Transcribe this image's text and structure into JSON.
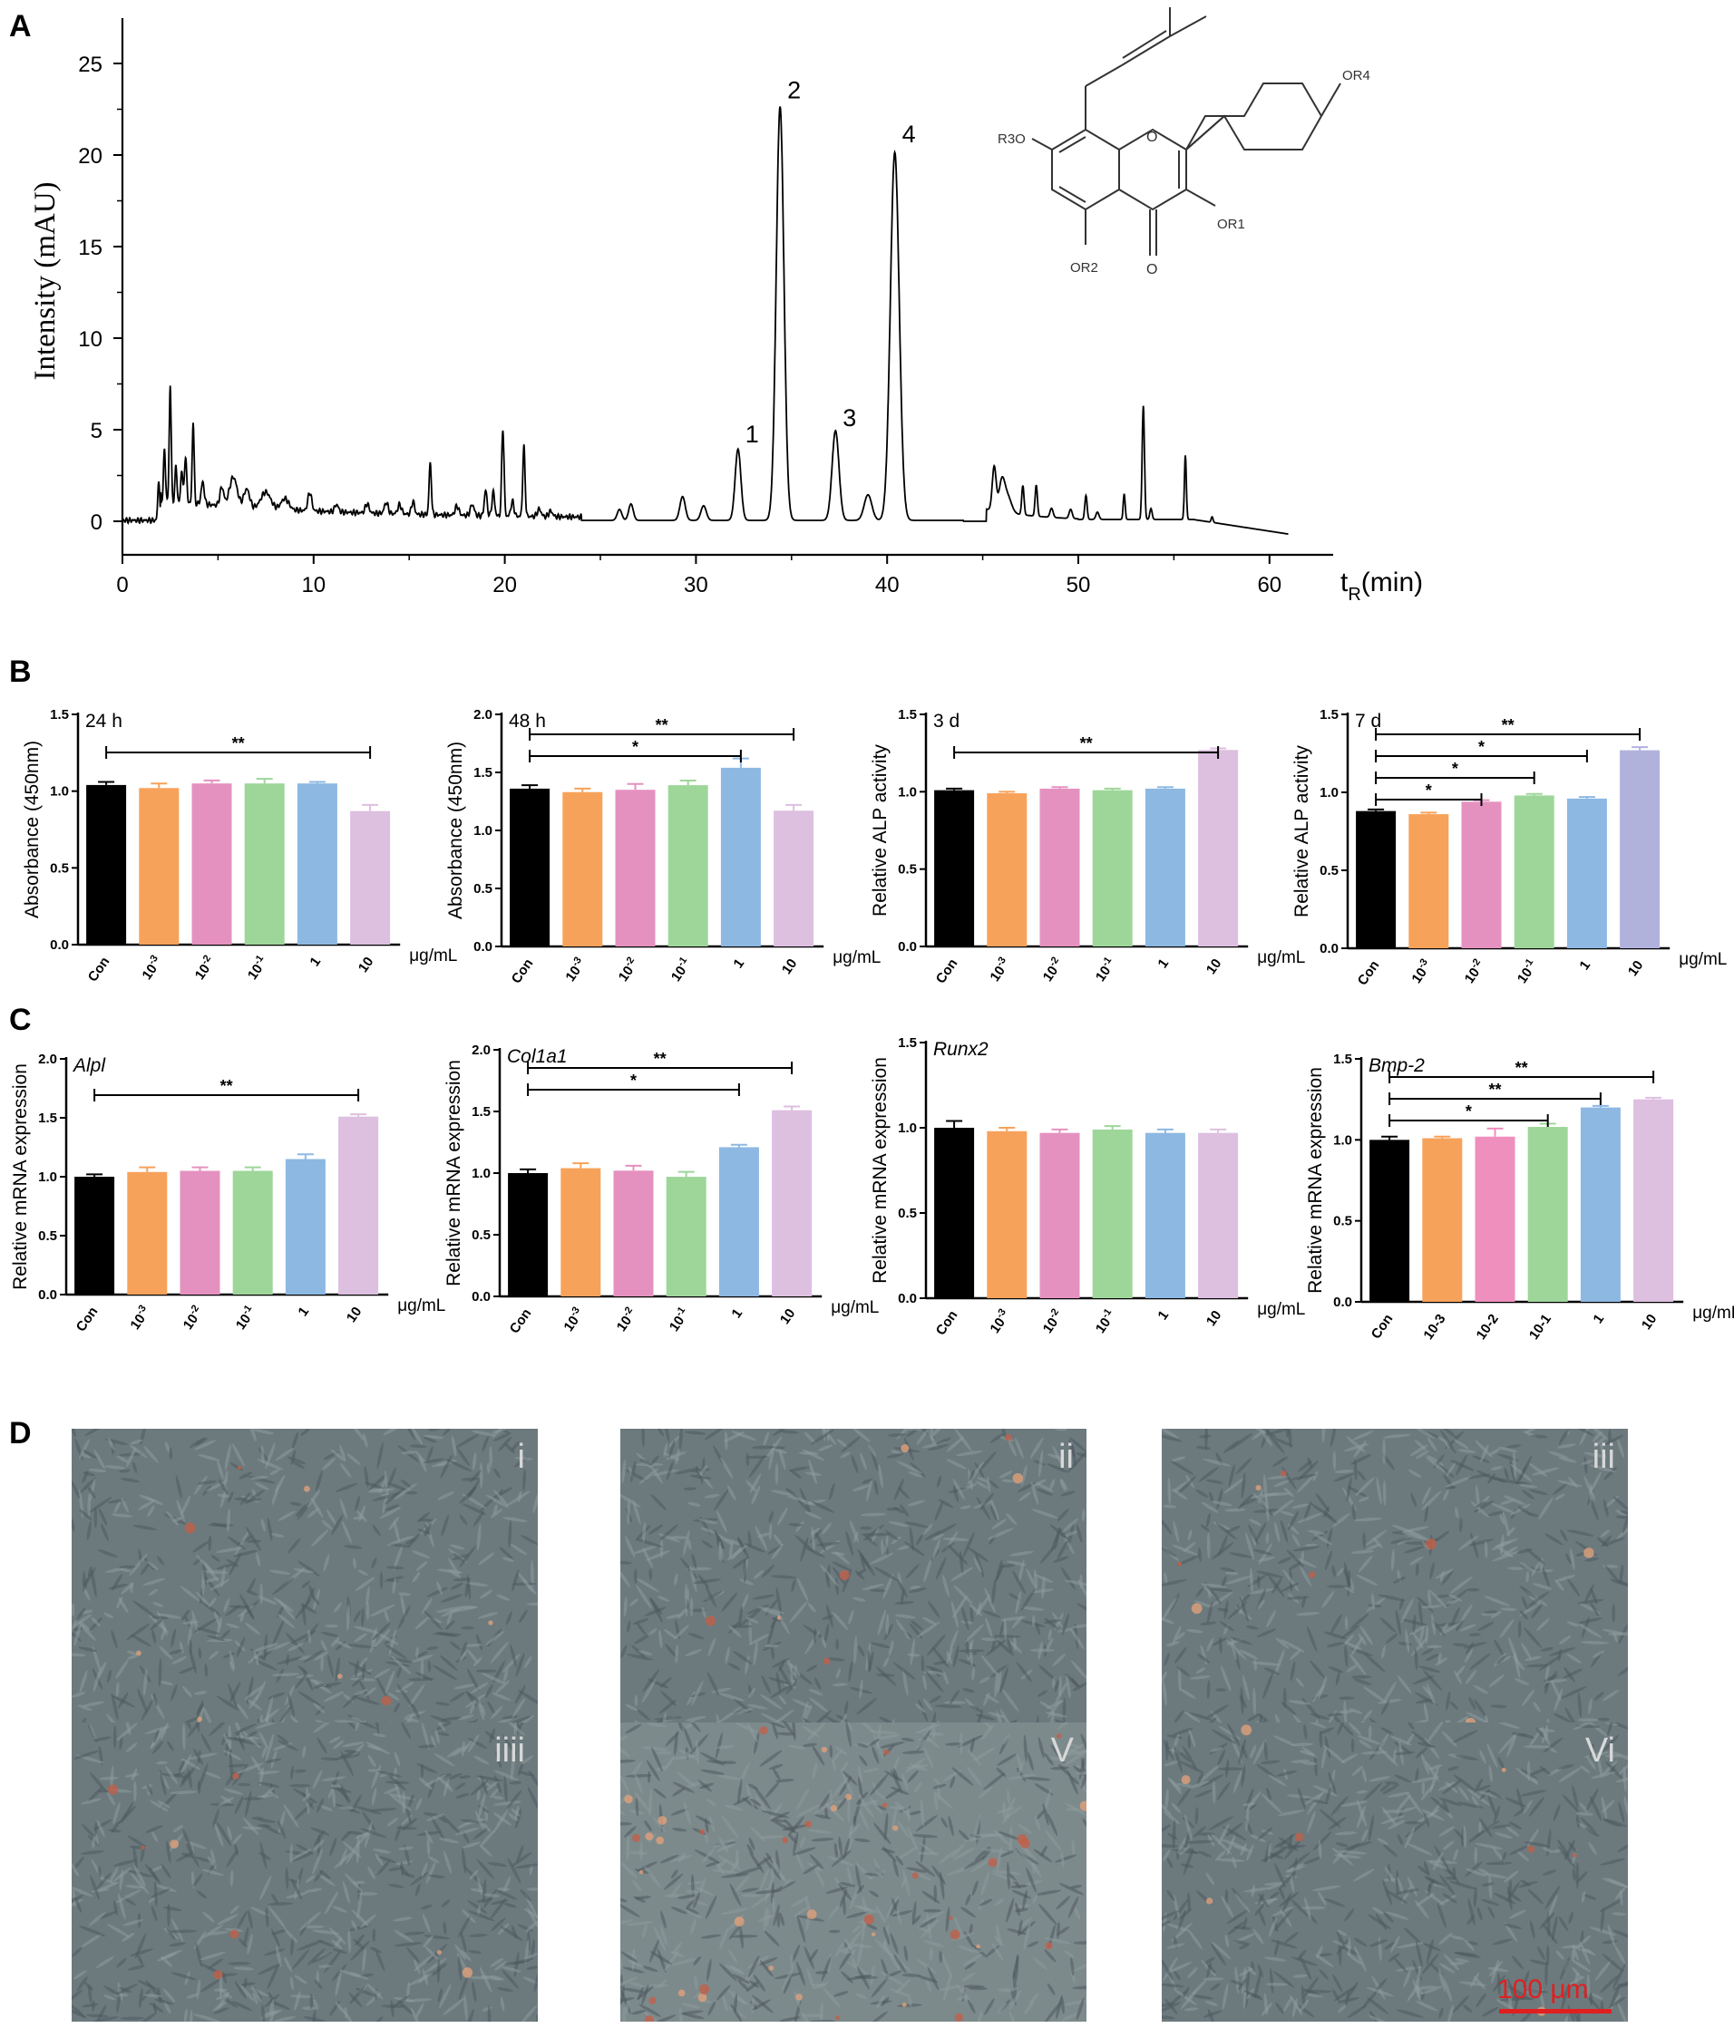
{
  "panels": {
    "A": "A",
    "B": "B",
    "C": "C",
    "D": "D"
  },
  "chromatogram": {
    "ylabel": "Intensity (mAU)",
    "xlabel_main": "t",
    "xlabel_sub": "R",
    "xlabel_unit": "(min)",
    "x_ticks": [
      "0",
      "10",
      "20",
      "30",
      "40",
      "50",
      "60"
    ],
    "y_ticks": [
      "0",
      "5",
      "10",
      "15",
      "20",
      "25"
    ],
    "xlim": [
      0,
      62
    ],
    "ylim": [
      -2,
      27
    ],
    "peaks": [
      {
        "label": "1",
        "rt": 32.2,
        "height": 4.2
      },
      {
        "label": "2",
        "rt": 34.4,
        "height": 23.0
      },
      {
        "label": "3",
        "rt": 37.3,
        "height": 5.1
      },
      {
        "label": "4",
        "rt": 40.4,
        "height": 20.6
      }
    ],
    "structure": {
      "R4": "OR4",
      "R3": "R3O",
      "R1": "OR1",
      "R2": "OR2",
      "ring_o": "O",
      "carbonyl_o": "O"
    }
  },
  "unit_label": "μg/mL",
  "colors": {
    "con": "#000000",
    "c1": "#f7a25a",
    "c2": "#e591c0",
    "c2_bmp": "#ef8fbe",
    "c3": "#9ed69a",
    "c4": "#8db8e2",
    "c5": "#ddbfe0",
    "c5_alp7": "#b1b2dc"
  },
  "chart_data": [
    {
      "id": "B1",
      "type": "bar",
      "title": "24 h",
      "ylabel": "Absorbance (450nm)",
      "ylim": [
        0,
        1.5
      ],
      "yticks": [
        "0.0",
        "0.5",
        "1.0",
        "1.5"
      ],
      "categories": [
        "Con",
        "10^-3",
        "10^-2",
        "10^-1",
        "1",
        "10"
      ],
      "values": [
        1.04,
        1.02,
        1.05,
        1.05,
        1.05,
        0.87
      ],
      "errors": [
        0.02,
        0.03,
        0.02,
        0.03,
        0.01,
        0.04
      ],
      "sig": [
        {
          "from": 0,
          "to": 5,
          "label": "**",
          "level": 0
        }
      ]
    },
    {
      "id": "B2",
      "type": "bar",
      "title": "48 h",
      "ylabel": "Absorbance (450nm)",
      "ylim": [
        0,
        2.0
      ],
      "yticks": [
        "0.0",
        "0.5",
        "1.0",
        "1.5",
        "2.0"
      ],
      "categories": [
        "Con",
        "10^-3",
        "10^-2",
        "10^-1",
        "1",
        "10"
      ],
      "values": [
        1.36,
        1.33,
        1.35,
        1.39,
        1.54,
        1.17
      ],
      "errors": [
        0.03,
        0.03,
        0.05,
        0.04,
        0.08,
        0.05
      ],
      "sig": [
        {
          "from": 0,
          "to": 4,
          "label": "*",
          "level": 0
        },
        {
          "from": 0,
          "to": 5,
          "label": "**",
          "level": 1
        }
      ]
    },
    {
      "id": "B3",
      "type": "bar",
      "title": "3 d",
      "ylabel": "Relative ALP activity",
      "ylim": [
        0,
        1.5
      ],
      "yticks": [
        "0.0",
        "0.5",
        "1.0",
        "1.5"
      ],
      "categories": [
        "Con",
        "10^-3",
        "10^-2",
        "10^-1",
        "1",
        "10"
      ],
      "values": [
        1.01,
        0.99,
        1.02,
        1.01,
        1.02,
        1.27
      ],
      "errors": [
        0.01,
        0.01,
        0.01,
        0.01,
        0.01,
        0.01
      ],
      "sig": [
        {
          "from": 0,
          "to": 5,
          "label": "**",
          "level": 0
        }
      ]
    },
    {
      "id": "B4",
      "type": "bar",
      "title": "7 d",
      "ylabel": "Relative ALP activity",
      "ylim": [
        0,
        1.5
      ],
      "yticks": [
        "0.0",
        "0.5",
        "1.0",
        "1.5"
      ],
      "categories": [
        "Con",
        "10^-3",
        "10^-2",
        "10^-1",
        "1",
        "10"
      ],
      "values": [
        0.88,
        0.86,
        0.94,
        0.98,
        0.96,
        1.27
      ],
      "errors": [
        0.01,
        0.01,
        0.01,
        0.01,
        0.01,
        0.02
      ],
      "sig": [
        {
          "from": 0,
          "to": 2,
          "label": "*",
          "level": 0
        },
        {
          "from": 0,
          "to": 3,
          "label": "*",
          "level": 1
        },
        {
          "from": 0,
          "to": 4,
          "label": "*",
          "level": 2
        },
        {
          "from": 0,
          "to": 5,
          "label": "**",
          "level": 3
        }
      ]
    },
    {
      "id": "C1",
      "type": "bar",
      "title": "Alpl",
      "italic": true,
      "ylabel": "Relative mRNA expression",
      "ylim": [
        0,
        2.0
      ],
      "yticks": [
        "0.0",
        "0.5",
        "1.0",
        "1.5",
        "2.0"
      ],
      "categories": [
        "Con",
        "10^-3",
        "10^-2",
        "10^-1",
        "1",
        "10"
      ],
      "values": [
        1.0,
        1.04,
        1.05,
        1.05,
        1.15,
        1.51
      ],
      "errors": [
        0.02,
        0.04,
        0.03,
        0.03,
        0.04,
        0.02
      ],
      "sig": [
        {
          "from": 0,
          "to": 5,
          "label": "**",
          "level": 0
        }
      ]
    },
    {
      "id": "C2",
      "type": "bar",
      "title": "Col1a1",
      "italic": true,
      "ylabel": "Relative mRNA expression",
      "ylim": [
        0,
        2.0
      ],
      "yticks": [
        "0.0",
        "0.5",
        "1.0",
        "1.5",
        "2.0"
      ],
      "categories": [
        "Con",
        "10^-3",
        "10^-2",
        "10^-1",
        "1",
        "10"
      ],
      "values": [
        1.0,
        1.04,
        1.02,
        0.97,
        1.21,
        1.51
      ],
      "errors": [
        0.03,
        0.04,
        0.04,
        0.04,
        0.02,
        0.03
      ],
      "sig": [
        {
          "from": 0,
          "to": 4,
          "label": "*",
          "level": 0
        },
        {
          "from": 0,
          "to": 5,
          "label": "**",
          "level": 1
        }
      ]
    },
    {
      "id": "C3",
      "type": "bar",
      "title": "Runx2",
      "italic": true,
      "ylabel": "Relative mRNA expression",
      "ylim": [
        0,
        1.5
      ],
      "yticks": [
        "0.0",
        "0.5",
        "1.0",
        "1.5"
      ],
      "categories": [
        "Con",
        "10^-3",
        "10^-2",
        "10^-1",
        "1",
        "10"
      ],
      "values": [
        1.0,
        0.98,
        0.97,
        0.99,
        0.97,
        0.97
      ],
      "errors": [
        0.04,
        0.02,
        0.02,
        0.02,
        0.02,
        0.02
      ],
      "sig": []
    },
    {
      "id": "C4",
      "type": "bar",
      "title": "Bmp-2",
      "italic": true,
      "ylabel": "Relative mRNA expression",
      "ylim": [
        0,
        1.5
      ],
      "yticks": [
        "0.0",
        "0.5",
        "1.0",
        "1.5"
      ],
      "categories": [
        "Con",
        "10-3",
        "10-2",
        "10-1",
        "1",
        "10"
      ],
      "values": [
        1.0,
        1.01,
        1.02,
        1.08,
        1.2,
        1.25
      ],
      "errors": [
        0.02,
        0.01,
        0.05,
        0.02,
        0.01,
        0.01
      ],
      "sig": [
        {
          "from": 0,
          "to": 3,
          "label": "*",
          "level": 0
        },
        {
          "from": 0,
          "to": 4,
          "label": "**",
          "level": 1
        },
        {
          "from": 0,
          "to": 5,
          "label": "**",
          "level": 2
        }
      ]
    }
  ],
  "micrographs": {
    "labels": [
      "i",
      "ii",
      "iii",
      "iiii",
      "V",
      "Vi"
    ],
    "scale_bar": "100 μm"
  }
}
